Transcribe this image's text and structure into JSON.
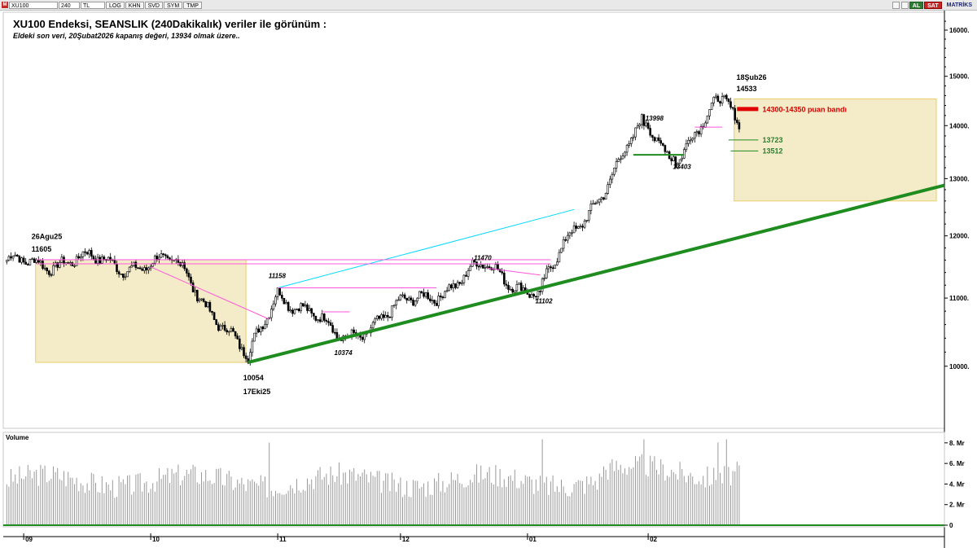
{
  "toolbar": {
    "symbol": "XU100",
    "period": "240",
    "currency": "TL",
    "buttons": [
      "LOG",
      "KHN",
      "SVD",
      "SYM",
      "TMP"
    ],
    "buy_label": "AL",
    "sell_label": "SAT",
    "brand": "MATRİKS"
  },
  "header": {
    "title": "XU100 Endeksi, SEANSLIK (240Dakikalık) veriler ile görünüm :",
    "subtitle": "Eldeki son veri, 20Şubat2026 kapanış değeri, 13934 olmak üzere.."
  },
  "chart_data": [
    {
      "type": "candlestick",
      "title": "",
      "price_axis": {
        "ticks": [
          10000,
          11000,
          12000,
          13000,
          14000,
          15000,
          16000
        ],
        "tick_labels": [
          "10000.",
          "11000.",
          "12000.",
          "13000.",
          "14000.",
          "15000.",
          "16000."
        ],
        "ylim": [
          9200,
          16350
        ],
        "scale": "log"
      },
      "time_axis": {
        "labels": [
          "09",
          "10",
          "11",
          "12",
          "01",
          "02"
        ],
        "label_sessions": [
          8,
          68,
          128,
          186,
          246,
          303
        ],
        "total_sessions": 346
      },
      "key_points": [
        {
          "session": 14,
          "price": 11605
        },
        {
          "session": 82,
          "price": 11510
        },
        {
          "session": 114,
          "price": 10054
        },
        {
          "session": 128,
          "price": 11158
        },
        {
          "session": 157,
          "price": 10374
        },
        {
          "session": 225,
          "price": 11470
        },
        {
          "session": 252,
          "price": 11102
        },
        {
          "session": 301,
          "price": 13998
        },
        {
          "session": 315,
          "price": 13403
        },
        {
          "session": 340,
          "price": 14533
        },
        {
          "session": 346,
          "price": 13934
        }
      ],
      "annotations": [
        {
          "text": "26Agu25",
          "session": 14,
          "price": 11990,
          "color": "#000000",
          "style": "bold"
        },
        {
          "text": "11605",
          "session": 14,
          "price": 11780,
          "color": "#000000",
          "style": "bold"
        },
        {
          "text": "10054",
          "session": 114,
          "price": 9840,
          "color": "#000000",
          "style": "bold"
        },
        {
          "text": "17Eki25",
          "session": 114,
          "price": 9650,
          "color": "#000000",
          "style": "bold"
        },
        {
          "text": "11158",
          "session": 126,
          "price": 11350,
          "color": "#000000",
          "style": "italic"
        },
        {
          "text": "10374",
          "session": 157,
          "price": 10190,
          "color": "#000000",
          "style": "italic"
        },
        {
          "text": "11470",
          "session": 223,
          "price": 11640,
          "color": "#000000",
          "style": "italic"
        },
        {
          "text": "11102",
          "session": 252,
          "price": 10960,
          "color": "#000000",
          "style": "italic"
        },
        {
          "text": "13998",
          "session": 304,
          "price": 14150,
          "color": "#000000",
          "style": "italic"
        },
        {
          "text": "13403",
          "session": 317,
          "price": 13220,
          "color": "#000000",
          "style": "italic"
        },
        {
          "text": "18Şub26",
          "session": 347,
          "price": 14980,
          "color": "#000000",
          "style": "bold"
        },
        {
          "text": "14533",
          "session": 347,
          "price": 14740,
          "color": "#000000",
          "style": "bold"
        },
        {
          "text": "14300-14350 puan bandı",
          "session": 357,
          "price": 14320,
          "color": "#d50000",
          "style": "bold"
        },
        {
          "text": "13723",
          "session": 357,
          "price": 13723,
          "color": "#2e7d32",
          "style": "bold"
        },
        {
          "text": "13512",
          "session": 357,
          "price": 13512,
          "color": "#2e7d32",
          "style": "bold"
        }
      ],
      "rectangles": [
        {
          "from_session": 14,
          "to_session": 113,
          "from_price": 10054,
          "to_price": 11605,
          "color": "#f0e2b0"
        },
        {
          "from_session": 344,
          "to_session": 443,
          "from_price": 12600,
          "to_price": 14533,
          "color": "#f0e2b0"
        }
      ],
      "lines": [
        {
          "name": "support-trend",
          "from": [
            114,
            10054
          ],
          "to": [
            443,
            12880
          ],
          "color": "#1e8c1e",
          "width": 4
        },
        {
          "name": "cyan-channel",
          "from": [
            128,
            11158
          ],
          "to": [
            268,
            12450
          ],
          "color": "#00d8ff",
          "width": 1
        },
        {
          "name": "pink-top-1",
          "from": [
            14,
            11605
          ],
          "to": [
            257,
            11605
          ],
          "color": "#ff55dd",
          "width": 1
        },
        {
          "name": "pink-top-2",
          "from": [
            14,
            11540
          ],
          "to": [
            257,
            11540
          ],
          "color": "#ff55dd",
          "width": 1
        },
        {
          "name": "pink-diagonal",
          "from": [
            68,
            11490
          ],
          "to": [
            124,
            10680
          ],
          "color": "#ff55dd",
          "width": 1
        },
        {
          "name": "pink-mid",
          "from": [
            128,
            11158
          ],
          "to": [
            203,
            11158
          ],
          "color": "#ff55dd",
          "width": 1
        },
        {
          "name": "pink-mid-2",
          "from": [
            149,
            10790
          ],
          "to": [
            162,
            10790
          ],
          "color": "#ff55dd",
          "width": 1
        },
        {
          "name": "pink-decline",
          "from": [
            227,
            11470
          ],
          "to": [
            252,
            11360
          ],
          "color": "#ff55dd",
          "width": 1
        },
        {
          "name": "pink-recent",
          "from": [
            325,
            13970
          ],
          "to": [
            338,
            13970
          ],
          "color": "#ff55dd",
          "width": 1
        },
        {
          "name": "green-13403",
          "from": [
            296,
            13440
          ],
          "to": [
            320,
            13440
          ],
          "color": "#1e8c1e",
          "width": 2
        },
        {
          "name": "green-13723",
          "from": [
            341,
            13723
          ],
          "to": [
            355,
            13723
          ],
          "color": "#1e8c1e",
          "width": 1
        },
        {
          "name": "green-13512",
          "from": [
            342,
            13512
          ],
          "to": [
            355,
            13512
          ],
          "color": "#1e8c1e",
          "width": 1
        },
        {
          "name": "red-band",
          "from": [
            345,
            14330
          ],
          "to": [
            355,
            14330
          ],
          "color": "#e00000",
          "width": 5
        }
      ]
    },
    {
      "type": "bar",
      "title": "Volume",
      "axis_ticks": [
        0,
        2,
        4,
        6,
        8
      ],
      "tick_labels": [
        "0",
        "2. Mr",
        "4. Mr",
        "6. Mr",
        "8. Mr"
      ],
      "ylim": [
        0,
        8.7
      ],
      "bar_color": "#9a9a9a",
      "baseline_color": "#1e8c1e",
      "sessions": 346
    }
  ]
}
